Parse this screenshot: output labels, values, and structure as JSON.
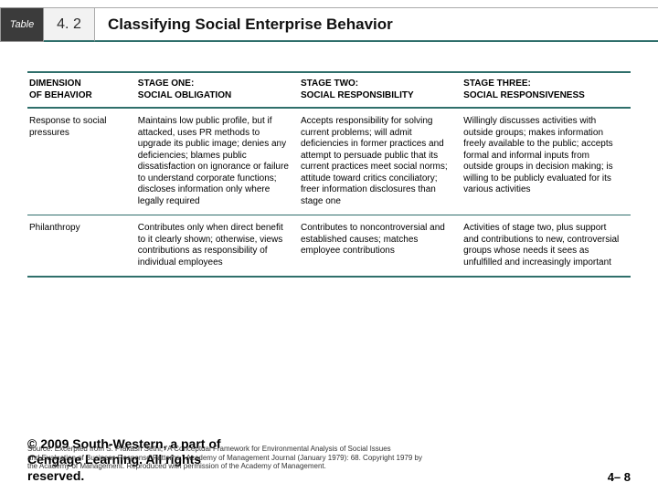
{
  "title": {
    "tab": "Table",
    "number": "4. 2",
    "text": "Classifying Social Enterprise Behavior"
  },
  "table": {
    "headers": {
      "c0a": "DIMENSION",
      "c0b": "OF BEHAVIOR",
      "c1a": "STAGE ONE:",
      "c1b": "SOCIAL OBLIGATION",
      "c2a": "STAGE TWO:",
      "c2b": "SOCIAL RESPONSIBILITY",
      "c3a": "STAGE THREE:",
      "c3b": "SOCIAL RESPONSIVENESS"
    },
    "rows": [
      {
        "c0": "Response to social pressures",
        "c1": "Maintains low public profile, but if attacked, uses PR methods to upgrade its public image; denies any deficiencies; blames public dissatisfaction on ignorance or failure to understand corporate functions; discloses information only where legally required",
        "c2": "Accepts responsibility for solving current problems; will admit deficiencies in former practices and attempt to persuade public that its current practices meet social norms; attitude toward critics conciliatory; freer information disclosures than stage one",
        "c3": "Willingly discusses activities with outside groups; makes information freely available to the public; accepts formal and informal inputs from outside groups in decision making; is willing to be publicly evaluated for its various activities"
      },
      {
        "c0": "Philanthropy",
        "c1": "Contributes only when direct benefit to it clearly shown; otherwise, views contributions as responsibility of individual employees",
        "c2": "Contributes to noncontroversial and established causes; matches employee contributions",
        "c3": "Activities of stage two, plus support and contributions to new, controversial groups whose needs it sees as unfulfilled and increasingly important"
      }
    ]
  },
  "footer": {
    "copyright1": "© 2009 South-Western, a part of",
    "copyright2": "Cengage Learning. All rights",
    "copyright3": "reserved.",
    "source1": "Source: Excerpted from S. Prakash Sethi, \"A Conceptual Framework for Environmental Analysis of Social Issues",
    "source2": "and Evaluation of Business Response Patterns,\" Academy of Management Journal (January 1979): 68. Copyright 1979 by",
    "source3": "the Academy of Management. Reproduced with permission of the Academy of Management.",
    "pagenum": "4– 8"
  },
  "colors": {
    "rule": "#2f6f6b",
    "tab_bg": "#3b3b3b",
    "num_bg": "#f2f2f2"
  }
}
